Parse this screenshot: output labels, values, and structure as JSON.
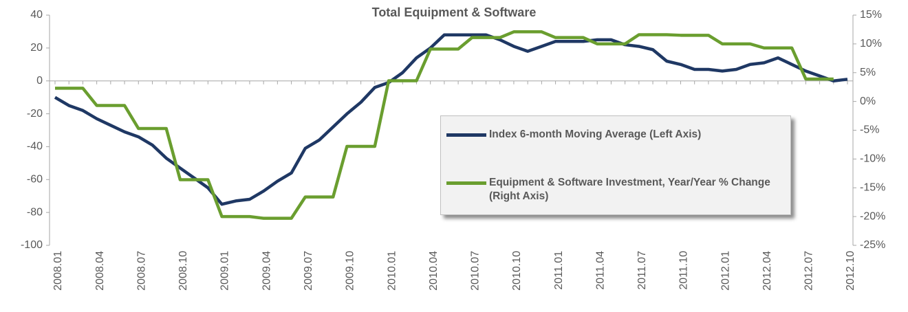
{
  "chart_data": {
    "type": "line",
    "title": "Total Equipment & Software",
    "categories": [
      "2008.01",
      null,
      null,
      "2008.04",
      null,
      null,
      "2008.07",
      null,
      null,
      "2008.10",
      null,
      null,
      "2009.01",
      null,
      null,
      "2009.04",
      null,
      null,
      "2009.07",
      null,
      null,
      "2009.10",
      null,
      null,
      "2010.01",
      null,
      null,
      "2010.04",
      null,
      null,
      "2010.07",
      null,
      null,
      "2010.10",
      null,
      null,
      "2011.01",
      null,
      null,
      "2011.04",
      null,
      null,
      "2011.07",
      null,
      null,
      "2011.10",
      null,
      null,
      "2012.01",
      null,
      null,
      "2012.04",
      null,
      null,
      "2012.07",
      null,
      null,
      "2012.10"
    ],
    "series": [
      {
        "name": "Index 6-month Moving Average (Left Axis)",
        "color": "#1f3864",
        "axis": "y",
        "values": [
          -10,
          -15,
          -18,
          -23,
          -27,
          -31,
          -34,
          -39,
          -47,
          -53,
          -59,
          -65,
          -75,
          -73,
          -72,
          -67,
          -61,
          -56,
          -41,
          -36,
          -28,
          -20,
          -13,
          -4,
          -1,
          5,
          14,
          20,
          28,
          28,
          28,
          28,
          25,
          21,
          18,
          21,
          24,
          24,
          24,
          25,
          25,
          22,
          21,
          19,
          12,
          10,
          7,
          7,
          6,
          7,
          10,
          11,
          14,
          10,
          6,
          3,
          0,
          1
        ]
      },
      {
        "name": "Equipment & Software Investment, Year/Year % Change (Right Axis)",
        "color": "#6a9e2f",
        "axis": "y2",
        "values": [
          2.3,
          2.3,
          2.3,
          -0.7,
          -0.7,
          -0.7,
          -4.7,
          -4.7,
          -4.7,
          -13.6,
          -13.6,
          -13.6,
          -20,
          -20,
          -20,
          -20.3,
          -20.3,
          -20.3,
          -16.6,
          -16.6,
          -16.6,
          -7.8,
          -7.8,
          -7.8,
          3.6,
          3.6,
          3.6,
          9.1,
          9.1,
          9.1,
          11.1,
          11.1,
          11.1,
          12.1,
          12.1,
          12.1,
          11.1,
          11.1,
          11.1,
          10,
          10,
          10,
          11.6,
          11.6,
          11.6,
          11.5,
          11.5,
          11.5,
          10,
          10,
          10,
          9.3,
          9.3,
          9.3,
          3.9,
          3.9,
          3.9,
          null
        ]
      }
    ],
    "ylim": [
      -100,
      40
    ],
    "yticks": [
      -100,
      -80,
      -60,
      -40,
      -20,
      0,
      20,
      40
    ],
    "y2lim": [
      -25,
      15
    ],
    "y2ticks": [
      {
        "value": -25,
        "label": "-25%"
      },
      {
        "value": -20,
        "label": "-20%"
      },
      {
        "value": -15,
        "label": "-15%"
      },
      {
        "value": -10,
        "label": "-10%"
      },
      {
        "value": -5,
        "label": "-5%"
      },
      {
        "value": 0,
        "label": "0%"
      },
      {
        "value": 5,
        "label": "5%"
      },
      {
        "value": 10,
        "label": "10%"
      },
      {
        "value": 15,
        "label": "15%"
      }
    ]
  }
}
